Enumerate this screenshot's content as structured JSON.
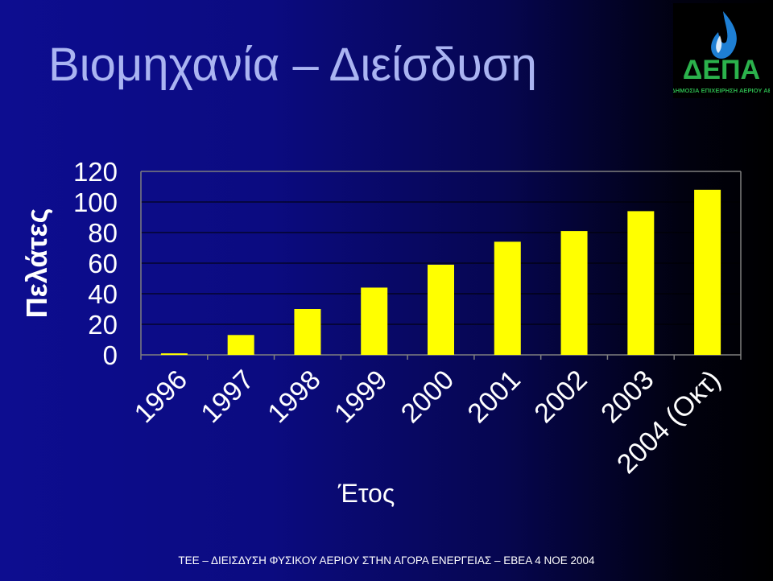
{
  "slide": {
    "title": "Βιομηχανία – Διείσδυση",
    "footer": "ΤΕΕ – ΔΙΕΙΣΔΥΣΗ ΦΥΣΙΚΟΥ ΑΕΡΙΟΥ ΣΤΗΝ ΑΓΟΡΑ ΕΝΕΡΓΕΙΑΣ – ΕΒΕΑ 4 ΝΟΕ 2004"
  },
  "logo": {
    "text": "ΔΕΠΑ",
    "subtitle": "ΔΗΜΟΣΙΑ ΕΠΙΧΕΙΡΗΣΗ ΑΕΡΙΟΥ ΑΕ",
    "color": "#2bb24c",
    "flame_color": "#1e7fd4"
  },
  "chart_data": {
    "type": "bar",
    "ylabel": "Πελάτες",
    "xlabel": "Έτος",
    "categories": [
      "1996",
      "1997",
      "1998",
      "1999",
      "2000",
      "2001",
      "2002",
      "2003",
      "2004 (Οκτ)"
    ],
    "values": [
      1,
      13,
      30,
      44,
      59,
      74,
      81,
      94,
      108
    ],
    "ylim": [
      0,
      120
    ],
    "yticks": [
      "0",
      "20",
      "40",
      "60",
      "80",
      "100",
      "120"
    ],
    "grid": true,
    "legend": false,
    "bar_color": "#ffff00",
    "axis_color": "#7f7f7f",
    "text_color": "#ffffff"
  }
}
